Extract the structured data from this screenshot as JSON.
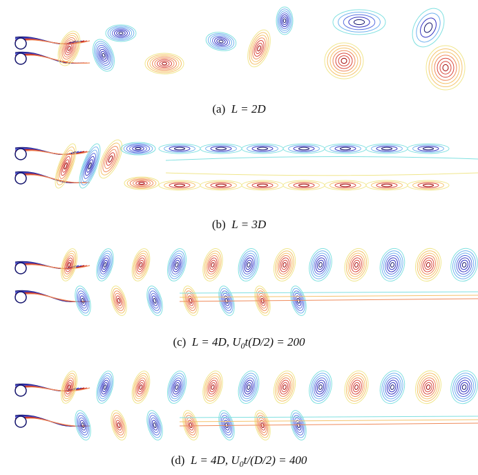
{
  "panels": [
    {
      "label": "(a)",
      "caption": [
        "L = 2D"
      ]
    },
    {
      "label": "(b)",
      "caption": [
        "L = 3D"
      ]
    },
    {
      "label": "(c)",
      "caption": [
        "L = 4D, U",
        "0",
        "t(D/2) = 200"
      ]
    },
    {
      "label": "(d)",
      "caption": [
        "L = 4D, U",
        "0",
        "t/(D/2) = 400"
      ]
    }
  ]
}
